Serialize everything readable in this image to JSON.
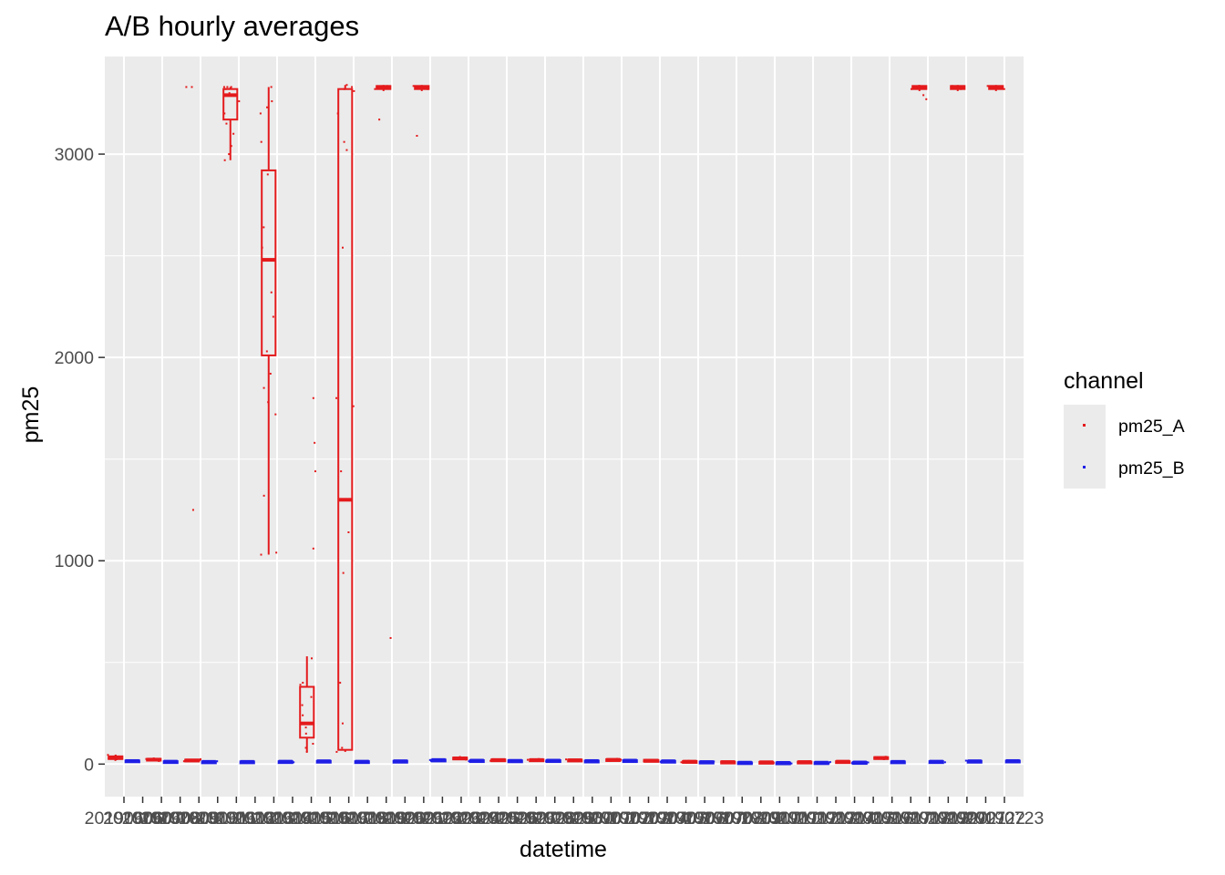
{
  "chart_data": {
    "type": "box",
    "title": "A/B hourly averages",
    "xlabel": "datetime",
    "ylabel": "pm25",
    "ylim": [
      -160,
      3480
    ],
    "y_ticks": [
      0,
      1000,
      2000,
      3000
    ],
    "y_tick_labels": [
      "0",
      "1000",
      "2000",
      "3000"
    ],
    "grid": true,
    "legend": {
      "title": "channel",
      "position": "right",
      "entries": [
        {
          "label": "pm25_A",
          "color": "#e41a1c"
        },
        {
          "label": "pm25_B",
          "color": "#1f1fe6"
        }
      ]
    },
    "x_tick_labels": [
      "20190606",
      "20190607",
      "20190608",
      "20190609",
      "20190610",
      "20190611",
      "20190612",
      "20190613",
      "20190614",
      "20190615",
      "20190616",
      "20190617",
      "20190618",
      "20190619",
      "20190620",
      "20190621",
      "20190622",
      "20190623",
      "20190624",
      "20190625",
      "20190626",
      "20190627",
      "20190628",
      "20190629",
      "20190630",
      "20190701",
      "20190702",
      "20190703",
      "20190704",
      "20190705",
      "20190706",
      "20190707",
      "20190708",
      "20190709",
      "20190710",
      "20190711",
      "20190712",
      "20190713",
      "20190714",
      "20190715",
      "20190716",
      "20190717",
      "20190718",
      "20190719",
      "20190720",
      "20190721",
      "20190722",
      "20190723"
    ],
    "days": [
      {
        "i": 0,
        "A": {
          "q1": 25,
          "med": 30,
          "q3": 38,
          "lo": 20,
          "hi": 45,
          "pts": [
            20,
            24,
            28,
            32,
            36,
            42,
            45
          ]
        },
        "B": {
          "q1": 12,
          "med": 15,
          "q3": 18,
          "lo": 8,
          "hi": 20,
          "pts": [
            10,
            14,
            16,
            19
          ]
        }
      },
      {
        "i": 1,
        "A": {
          "q1": 18,
          "med": 22,
          "q3": 26,
          "lo": 14,
          "hi": 30,
          "pts": [
            15,
            20,
            25,
            28
          ]
        },
        "B": {
          "q1": 10,
          "med": 12,
          "q3": 14,
          "lo": 8,
          "hi": 16,
          "pts": [
            9,
            12,
            15
          ]
        }
      },
      {
        "i": 2,
        "A": {
          "q1": 15,
          "med": 18,
          "q3": 22,
          "lo": 12,
          "hi": 26,
          "pts": [
            1250,
            3330,
            3330,
            14,
            20,
            24
          ]
        },
        "B": {
          "q1": 9,
          "med": 11,
          "q3": 13,
          "lo": 7,
          "hi": 15,
          "pts": [
            8,
            11,
            14
          ]
        }
      },
      {
        "i": 3,
        "A": {
          "q1": 3170,
          "med": 3290,
          "q3": 3320,
          "lo": 2970,
          "hi": 3330,
          "pts": [
            2970,
            3000,
            3040,
            3100,
            3150,
            3200,
            3260,
            3300,
            3320,
            3330,
            3330,
            3330
          ]
        },
        "B": {
          "q1": 9,
          "med": 11,
          "q3": 13,
          "lo": 7,
          "hi": 15,
          "pts": [
            8,
            12,
            14
          ]
        }
      },
      {
        "i": 4,
        "A": {
          "q1": 2010,
          "med": 2480,
          "q3": 2920,
          "lo": 1030,
          "hi": 3330,
          "pts": [
            1030,
            1040,
            1320,
            1720,
            1780,
            1850,
            1920,
            2030,
            2200,
            2320,
            2540,
            2640,
            2900,
            3060,
            3200,
            3230,
            3260,
            3330
          ]
        },
        "B": {
          "q1": 10,
          "med": 12,
          "q3": 14,
          "lo": 8,
          "hi": 16,
          "pts": [
            9,
            13,
            15
          ]
        }
      },
      {
        "i": 5,
        "A": {
          "q1": 130,
          "med": 200,
          "q3": 380,
          "lo": 60,
          "hi": 530,
          "pts": [
            60,
            80,
            100,
            150,
            180,
            240,
            290,
            330,
            390,
            400,
            520,
            1060,
            1440,
            1580,
            1800
          ]
        },
        "B": {
          "q1": 12,
          "med": 14,
          "q3": 16,
          "lo": 10,
          "hi": 18,
          "pts": [
            11,
            14,
            17
          ]
        }
      },
      {
        "i": 6,
        "A": {
          "q1": 70,
          "med": 1300,
          "q3": 3320,
          "lo": 60,
          "hi": 3340,
          "pts": [
            60,
            80,
            200,
            400,
            940,
            1140,
            1300,
            1440,
            1760,
            1800,
            2540,
            3020,
            3060,
            3200,
            3310,
            3320,
            3330,
            3340
          ]
        },
        "B": {
          "q1": 10,
          "med": 12,
          "q3": 14,
          "lo": 8,
          "hi": 16,
          "pts": [
            9,
            12,
            15
          ]
        }
      },
      {
        "i": 7,
        "A": {
          "q1": 3320,
          "med": 3330,
          "q3": 3335,
          "lo": 3310,
          "hi": 3340,
          "pts": [
            620,
            3170,
            3320,
            3330,
            3335
          ]
        },
        "B": {
          "q1": 12,
          "med": 14,
          "q3": 16,
          "lo": 10,
          "hi": 18,
          "pts": [
            11,
            15,
            17
          ]
        }
      },
      {
        "i": 8,
        "A": {
          "q1": 3320,
          "med": 3330,
          "q3": 3335,
          "lo": 3310,
          "hi": 3340,
          "pts": [
            3090,
            3320,
            3330,
            3335
          ]
        },
        "B": {
          "q1": 18,
          "med": 20,
          "q3": 22,
          "lo": 15,
          "hi": 25,
          "pts": [
            16,
            20,
            23
          ]
        }
      },
      {
        "i": 9,
        "A": {
          "q1": 25,
          "med": 28,
          "q3": 32,
          "lo": 20,
          "hi": 36,
          "pts": [
            22,
            26,
            30,
            35
          ]
        },
        "B": {
          "q1": 15,
          "med": 17,
          "q3": 19,
          "lo": 13,
          "hi": 21,
          "pts": [
            14,
            17,
            20
          ]
        }
      },
      {
        "i": 10,
        "A": {
          "q1": 18,
          "med": 20,
          "q3": 23,
          "lo": 15,
          "hi": 26,
          "pts": [
            16,
            20,
            24
          ]
        },
        "B": {
          "q1": 14,
          "med": 16,
          "q3": 18,
          "lo": 12,
          "hi": 20,
          "pts": [
            13,
            16,
            19
          ]
        }
      },
      {
        "i": 11,
        "A": {
          "q1": 18,
          "med": 20,
          "q3": 23,
          "lo": 15,
          "hi": 26,
          "pts": [
            16,
            21,
            25
          ]
        },
        "B": {
          "q1": 14,
          "med": 17,
          "q3": 19,
          "lo": 12,
          "hi": 21,
          "pts": [
            13,
            17,
            20
          ]
        }
      },
      {
        "i": 12,
        "A": {
          "q1": 17,
          "med": 19,
          "q3": 22,
          "lo": 14,
          "hi": 25,
          "pts": [
            15,
            19,
            23
          ]
        },
        "B": {
          "q1": 13,
          "med": 15,
          "q3": 17,
          "lo": 11,
          "hi": 19,
          "pts": [
            12,
            15,
            18
          ]
        }
      },
      {
        "i": 13,
        "A": {
          "q1": 18,
          "med": 21,
          "q3": 24,
          "lo": 15,
          "hi": 27,
          "pts": [
            16,
            21,
            26
          ]
        },
        "B": {
          "q1": 15,
          "med": 17,
          "q3": 19,
          "lo": 13,
          "hi": 21,
          "pts": [
            14,
            17,
            20
          ]
        }
      },
      {
        "i": 14,
        "A": {
          "q1": 15,
          "med": 17,
          "q3": 20,
          "lo": 12,
          "hi": 23,
          "pts": [
            13,
            17,
            21
          ]
        },
        "B": {
          "q1": 12,
          "med": 14,
          "q3": 16,
          "lo": 10,
          "hi": 18,
          "pts": [
            11,
            14,
            17
          ]
        }
      },
      {
        "i": 15,
        "A": {
          "q1": 10,
          "med": 12,
          "q3": 15,
          "lo": 8,
          "hi": 18,
          "pts": [
            9,
            12,
            16
          ]
        },
        "B": {
          "q1": 8,
          "med": 10,
          "q3": 12,
          "lo": 6,
          "hi": 14,
          "pts": [
            7,
            10,
            13
          ]
        }
      },
      {
        "i": 16,
        "A": {
          "q1": 8,
          "med": 10,
          "q3": 12,
          "lo": 6,
          "hi": 14,
          "pts": [
            7,
            10,
            13
          ]
        },
        "B": {
          "q1": 5,
          "med": 7,
          "q3": 9,
          "lo": 3,
          "hi": 11,
          "pts": [
            4,
            7,
            10
          ]
        }
      },
      {
        "i": 17,
        "A": {
          "q1": 7,
          "med": 9,
          "q3": 11,
          "lo": 5,
          "hi": 13,
          "pts": [
            6,
            9,
            12
          ]
        },
        "B": {
          "q1": 4,
          "med": 6,
          "q3": 8,
          "lo": 2,
          "hi": 10,
          "pts": [
            3,
            6,
            9
          ]
        }
      },
      {
        "i": 18,
        "A": {
          "q1": 8,
          "med": 10,
          "q3": 12,
          "lo": 6,
          "hi": 14,
          "pts": [
            7,
            10,
            13
          ]
        },
        "B": {
          "q1": 5,
          "med": 7,
          "q3": 9,
          "lo": 3,
          "hi": 11,
          "pts": [
            4,
            7,
            10
          ]
        }
      },
      {
        "i": 19,
        "A": {
          "q1": 10,
          "med": 12,
          "q3": 14,
          "lo": 8,
          "hi": 16,
          "pts": [
            9,
            12,
            15
          ]
        },
        "B": {
          "q1": 6,
          "med": 8,
          "q3": 10,
          "lo": 4,
          "hi": 12,
          "pts": [
            5,
            8,
            11
          ]
        }
      },
      {
        "i": 20,
        "A": {
          "q1": 26,
          "med": 30,
          "q3": 34,
          "lo": 22,
          "hi": 38,
          "pts": [
            24,
            30,
            36
          ]
        },
        "B": {
          "q1": 9,
          "med": 11,
          "q3": 13,
          "lo": 7,
          "hi": 15,
          "pts": [
            8,
            11,
            14
          ]
        }
      },
      {
        "i": 21,
        "A": {
          "q1": 3320,
          "med": 3330,
          "q3": 3335,
          "lo": 3310,
          "hi": 3340,
          "pts": [
            3270,
            3290,
            3320,
            3330,
            3335
          ]
        },
        "B": {
          "q1": 10,
          "med": 12,
          "q3": 14,
          "lo": 8,
          "hi": 16,
          "pts": [
            9,
            12,
            15
          ]
        }
      },
      {
        "i": 22,
        "A": {
          "q1": 3320,
          "med": 3330,
          "q3": 3335,
          "lo": 3310,
          "hi": 3340,
          "pts": [
            3320,
            3330,
            3335
          ]
        },
        "B": {
          "q1": 12,
          "med": 14,
          "q3": 16,
          "lo": 10,
          "hi": 18,
          "pts": [
            11,
            14,
            17
          ]
        }
      },
      {
        "i": 23,
        "A": {
          "q1": 3320,
          "med": 3330,
          "q3": 3335,
          "lo": 3310,
          "hi": 3340,
          "pts": [
            3320,
            3330,
            3335
          ]
        },
        "B": {
          "q1": 13,
          "med": 15,
          "q3": 17,
          "lo": 11,
          "hi": 19,
          "pts": [
            12,
            15,
            18
          ]
        }
      }
    ]
  }
}
